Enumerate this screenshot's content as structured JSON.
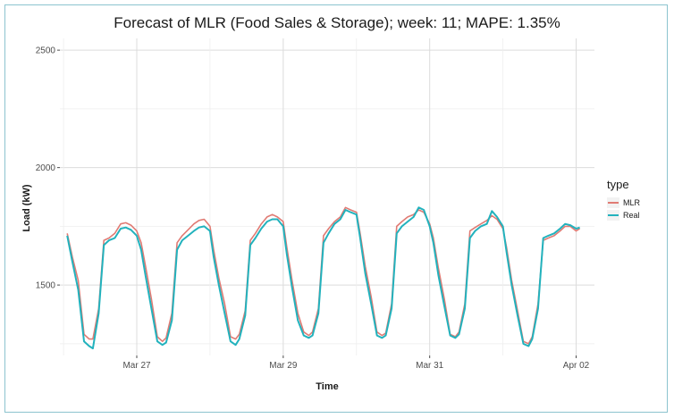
{
  "chart_data": {
    "type": "line",
    "title": "Forecast of MLR (Food Sales & Storage); week: 11; MAPE: 1.35%",
    "xlabel": "Time",
    "ylabel": "Load (kW)",
    "ylim": [
      1200,
      2550
    ],
    "y_ticks": [
      1500,
      2000,
      2500
    ],
    "x_ticks": [
      {
        "label": "Mar 27",
        "x": 1.0
      },
      {
        "label": "Mar 29",
        "x": 3.0
      },
      {
        "label": "Mar 31",
        "x": 5.0
      },
      {
        "label": "Apr 02",
        "x": 7.0
      }
    ],
    "xlim": [
      -0.05,
      7.25
    ],
    "grid": true,
    "legend": {
      "title": "type",
      "position": "right"
    },
    "series": [
      {
        "name": "MLR",
        "color": "#e07b74",
        "x": [
          0.05,
          0.12,
          0.2,
          0.28,
          0.35,
          0.4,
          0.48,
          0.55,
          0.62,
          0.7,
          0.78,
          0.85,
          0.92,
          1.0,
          1.06,
          1.12,
          1.2,
          1.28,
          1.35,
          1.4,
          1.48,
          1.55,
          1.62,
          1.7,
          1.78,
          1.85,
          1.92,
          2.0,
          2.05,
          2.12,
          2.2,
          2.28,
          2.35,
          2.4,
          2.48,
          2.55,
          2.62,
          2.7,
          2.78,
          2.85,
          2.92,
          3.0,
          3.05,
          3.12,
          3.2,
          3.28,
          3.35,
          3.4,
          3.48,
          3.55,
          3.62,
          3.7,
          3.78,
          3.85,
          3.92,
          4.0,
          4.05,
          4.12,
          4.2,
          4.28,
          4.35,
          4.4,
          4.48,
          4.55,
          4.62,
          4.7,
          4.78,
          4.85,
          4.92,
          5.0,
          5.05,
          5.12,
          5.2,
          5.28,
          5.35,
          5.4,
          5.48,
          5.55,
          5.62,
          5.7,
          5.78,
          5.85,
          5.92,
          6.0,
          6.05,
          6.12,
          6.2,
          6.28,
          6.35,
          6.4,
          6.48,
          6.55,
          6.62,
          6.7,
          6.78,
          6.85,
          6.92,
          7.0,
          7.05
        ],
        "values": [
          1720,
          1620,
          1520,
          1290,
          1270,
          1270,
          1400,
          1690,
          1700,
          1720,
          1760,
          1765,
          1755,
          1730,
          1680,
          1580,
          1440,
          1280,
          1260,
          1275,
          1380,
          1680,
          1710,
          1735,
          1760,
          1775,
          1780,
          1750,
          1650,
          1530,
          1420,
          1280,
          1270,
          1290,
          1390,
          1690,
          1720,
          1760,
          1790,
          1800,
          1790,
          1770,
          1660,
          1520,
          1380,
          1300,
          1285,
          1300,
          1400,
          1710,
          1740,
          1770,
          1790,
          1830,
          1820,
          1810,
          1720,
          1580,
          1450,
          1300,
          1285,
          1295,
          1420,
          1750,
          1770,
          1790,
          1800,
          1820,
          1810,
          1760,
          1700,
          1570,
          1440,
          1290,
          1280,
          1300,
          1420,
          1730,
          1745,
          1760,
          1775,
          1795,
          1780,
          1740,
          1660,
          1520,
          1390,
          1260,
          1250,
          1280,
          1420,
          1690,
          1700,
          1710,
          1730,
          1750,
          1750,
          1730,
          1740
        ]
      },
      {
        "name": "Real",
        "color": "#22b2bd",
        "x": [
          0.05,
          0.12,
          0.2,
          0.28,
          0.35,
          0.4,
          0.48,
          0.55,
          0.62,
          0.7,
          0.78,
          0.85,
          0.92,
          1.0,
          1.06,
          1.12,
          1.2,
          1.28,
          1.35,
          1.4,
          1.48,
          1.55,
          1.62,
          1.7,
          1.78,
          1.85,
          1.92,
          2.0,
          2.05,
          2.12,
          2.2,
          2.28,
          2.35,
          2.4,
          2.48,
          2.55,
          2.62,
          2.7,
          2.78,
          2.85,
          2.92,
          3.0,
          3.05,
          3.12,
          3.2,
          3.28,
          3.35,
          3.4,
          3.48,
          3.55,
          3.62,
          3.7,
          3.78,
          3.85,
          3.92,
          4.0,
          4.05,
          4.12,
          4.2,
          4.28,
          4.35,
          4.4,
          4.48,
          4.55,
          4.62,
          4.7,
          4.78,
          4.85,
          4.92,
          5.0,
          5.05,
          5.12,
          5.2,
          5.28,
          5.35,
          5.4,
          5.48,
          5.55,
          5.62,
          5.7,
          5.78,
          5.85,
          5.92,
          6.0,
          6.05,
          6.12,
          6.2,
          6.28,
          6.35,
          6.4,
          6.48,
          6.55,
          6.62,
          6.7,
          6.78,
          6.85,
          6.92,
          7.0,
          7.05
        ],
        "values": [
          1710,
          1600,
          1480,
          1260,
          1240,
          1230,
          1380,
          1670,
          1690,
          1700,
          1740,
          1745,
          1735,
          1710,
          1650,
          1540,
          1400,
          1260,
          1245,
          1255,
          1350,
          1650,
          1690,
          1710,
          1730,
          1745,
          1750,
          1730,
          1620,
          1500,
          1380,
          1260,
          1245,
          1270,
          1370,
          1670,
          1700,
          1740,
          1770,
          1780,
          1780,
          1750,
          1630,
          1490,
          1350,
          1285,
          1275,
          1285,
          1380,
          1680,
          1720,
          1760,
          1780,
          1820,
          1810,
          1800,
          1700,
          1550,
          1420,
          1285,
          1275,
          1285,
          1400,
          1720,
          1750,
          1770,
          1790,
          1830,
          1820,
          1750,
          1680,
          1540,
          1410,
          1285,
          1275,
          1290,
          1400,
          1700,
          1730,
          1750,
          1760,
          1815,
          1790,
          1750,
          1640,
          1500,
          1370,
          1250,
          1240,
          1270,
          1400,
          1700,
          1710,
          1720,
          1740,
          1760,
          1755,
          1740,
          1745
        ]
      }
    ]
  }
}
